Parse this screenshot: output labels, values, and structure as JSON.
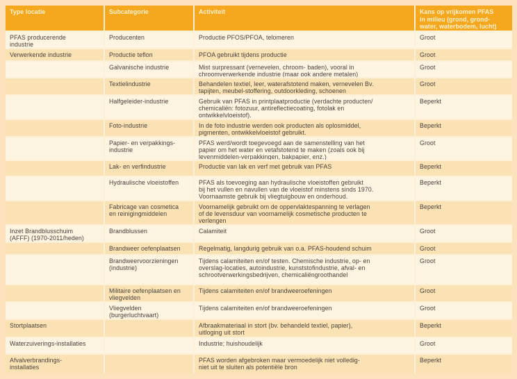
{
  "colors": {
    "page_background": "#fce3bd",
    "header_background": "#f5a81e",
    "header_text": "#fdf2d2",
    "row_light": "#fdf4e2",
    "row_dark": "#fbe2b5",
    "separator": "#fdf0d6",
    "body_text": "#474039"
  },
  "table": {
    "headers": [
      "Type locatie",
      "Subcategorie",
      "Activiteit",
      "Kans op vrijkomen PFAS\nin milieu (grond, grond-\nwater, waterbodem, lucht)"
    ],
    "rows": [
      {
        "type": "PFAS producerende\nindustrie",
        "subcategory": "Producenten",
        "activity": "Productie PFOS/PFOA, telomeren",
        "risk": "Groot"
      },
      {
        "type": "Verwerkende industrie",
        "subcategory": "Productie teflon",
        "activity": "PFOA gebruikt tijdens productie",
        "risk": "Groot"
      },
      {
        "type": "",
        "subcategory": "Galvanische industrie",
        "activity": "Mist surpressant (vernevelen, chroom- baden), vooral in\nchroomverwerkende industrie (maar ook andere metalen)",
        "risk": "Groot"
      },
      {
        "type": "",
        "subcategory": "Textielindustrie",
        "activity": "Behandelen textiel, leer, waterafstotend maken, vernevelen Bv.\ntapijten, meubel-stoffering, outdoorkleding, schoenen",
        "risk": "Groot"
      },
      {
        "type": "",
        "subcategory": "Halfgeleider-industrie",
        "activity": "Gebruik van PFAS in printplaatproductie (verdachte producten/\nchemicaliën: fotozuur, antireflectiecoating, fotolak en\nontwikkelvloeistof).",
        "risk": "Beperkt"
      },
      {
        "type": "",
        "subcategory": "Foto-industrie",
        "activity": "In de foto industrie werden ook producten als oplosmiddel,\npigmenten, ontwikkelvloeistof gebruikt.",
        "risk": "Beperkt"
      },
      {
        "type": "",
        "subcategory": "Papier- en verpakkings-\nindustrie",
        "activity": "PFAS werd/wordt toegevoegd aan de samenstelling van het\npapier om het water en vetafstotend te maken (zoals ook bij\nlevenmiddelen-verpakkingen, bakpapier, enz.)",
        "risk": "Groot"
      },
      {
        "type": "",
        "subcategory": "Lak- en verfindustrie",
        "activity": "Productie van lak en verf met gebruik van PFAS",
        "risk": "Beperkt"
      },
      {
        "type": "",
        "subcategory": "Hydraulische vloeistoffen",
        "activity": "PFAS als toevoeging aan hydraulische vloeistoffen gebruikt\nbij het vullen en navullen van de vloeistof minstens sinds 1970.\nVoornaamste gebruik bij vliegtuigbouw en onderhoud.",
        "risk": "Beperkt"
      },
      {
        "type": "",
        "subcategory": "Fabricage van cosmetica\nen reinigingmiddelen",
        "activity": "Voornamelijk gebruikt om de oppervlaktespanning te verlagen\nof de levensduur van voornamelijk cosmetische producten te\nverlengen",
        "risk": "Beperkt"
      },
      {
        "type": "Inzet Brandblusschuim\n(AFFF) (1970-2011/heden)",
        "subcategory": "Brandblussen",
        "activity": "Calamiteit",
        "risk": "Groot"
      },
      {
        "type": "",
        "subcategory": "Brandweer oefenplaatsen",
        "activity": "Regelmatig, langdurig gebruik van o.a. PFAS-houdend schuim",
        "risk": "Groot"
      },
      {
        "type": "",
        "subcategory": "Brandweervoorzieningen\n(industrie)",
        "activity": "Tijdens calamiteiten en/of testen. Chemische industrie, op- en\noverslag-locaties, autoindustrie, kunststofindustrie, afval- en\nschrootverwerkingsbedrijven, chemicaliëngroothandel",
        "risk": "Groot"
      },
      {
        "type": "",
        "subcategory": "Militaire oefenplaatsen en\nvliegvelden",
        "activity": "Tijdens calamiteiten en/of brandweeroefeningen",
        "risk": "Groot"
      },
      {
        "type": "",
        "subcategory": "Vliegvelden\n(burgerluchtvaart)",
        "activity": "Tijdens calamiteiten en/of brandweeroefeningen",
        "risk": "Groot"
      },
      {
        "type": "Stortplaatsen",
        "subcategory": "",
        "activity": "Afbraakmateriaal in stort (bv. behandeld textiel, papier),\nuitloging uit stort",
        "risk": "Beperkt"
      },
      {
        "type": "Waterzuiverings-installaties",
        "subcategory": "",
        "activity": "Industrie; huishoudelijk",
        "risk": "Groot"
      },
      {
        "type": "Afvalverbrandings-\ninstallaties",
        "subcategory": "",
        "activity": "PFAS worden afgebroken maar vermoedelijk niet volledig-\nniet uit te sluiten als potentiële bron",
        "risk": "Beperkt"
      }
    ]
  }
}
